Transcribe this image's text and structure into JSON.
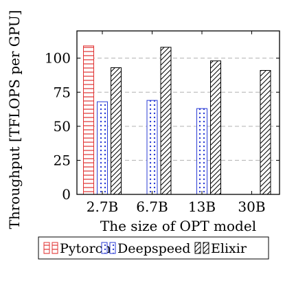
{
  "chart_data": {
    "type": "bar",
    "xlabel": "The size of OPT model",
    "ylabel": "Throughput [TFLOPS per GPU]",
    "categories": [
      "2.7B",
      "6.7B",
      "13B",
      "30B"
    ],
    "ylim": [
      0,
      120
    ],
    "yticks": [
      0,
      25,
      50,
      75,
      100
    ],
    "grid": "horizontal dashed",
    "legend_placement": "bottom",
    "series": [
      {
        "name": "Pytorch",
        "values": [
          109,
          null,
          null,
          null
        ],
        "color": "#e03030",
        "pattern": "horizontal-lines"
      },
      {
        "name": "Deepspeed",
        "values": [
          68,
          69,
          63,
          null
        ],
        "color": "#2a3bd6",
        "pattern": "dots"
      },
      {
        "name": "Elixir",
        "values": [
          93,
          108,
          98,
          91
        ],
        "color": "#000000",
        "pattern": "diagonal-lines"
      }
    ]
  }
}
